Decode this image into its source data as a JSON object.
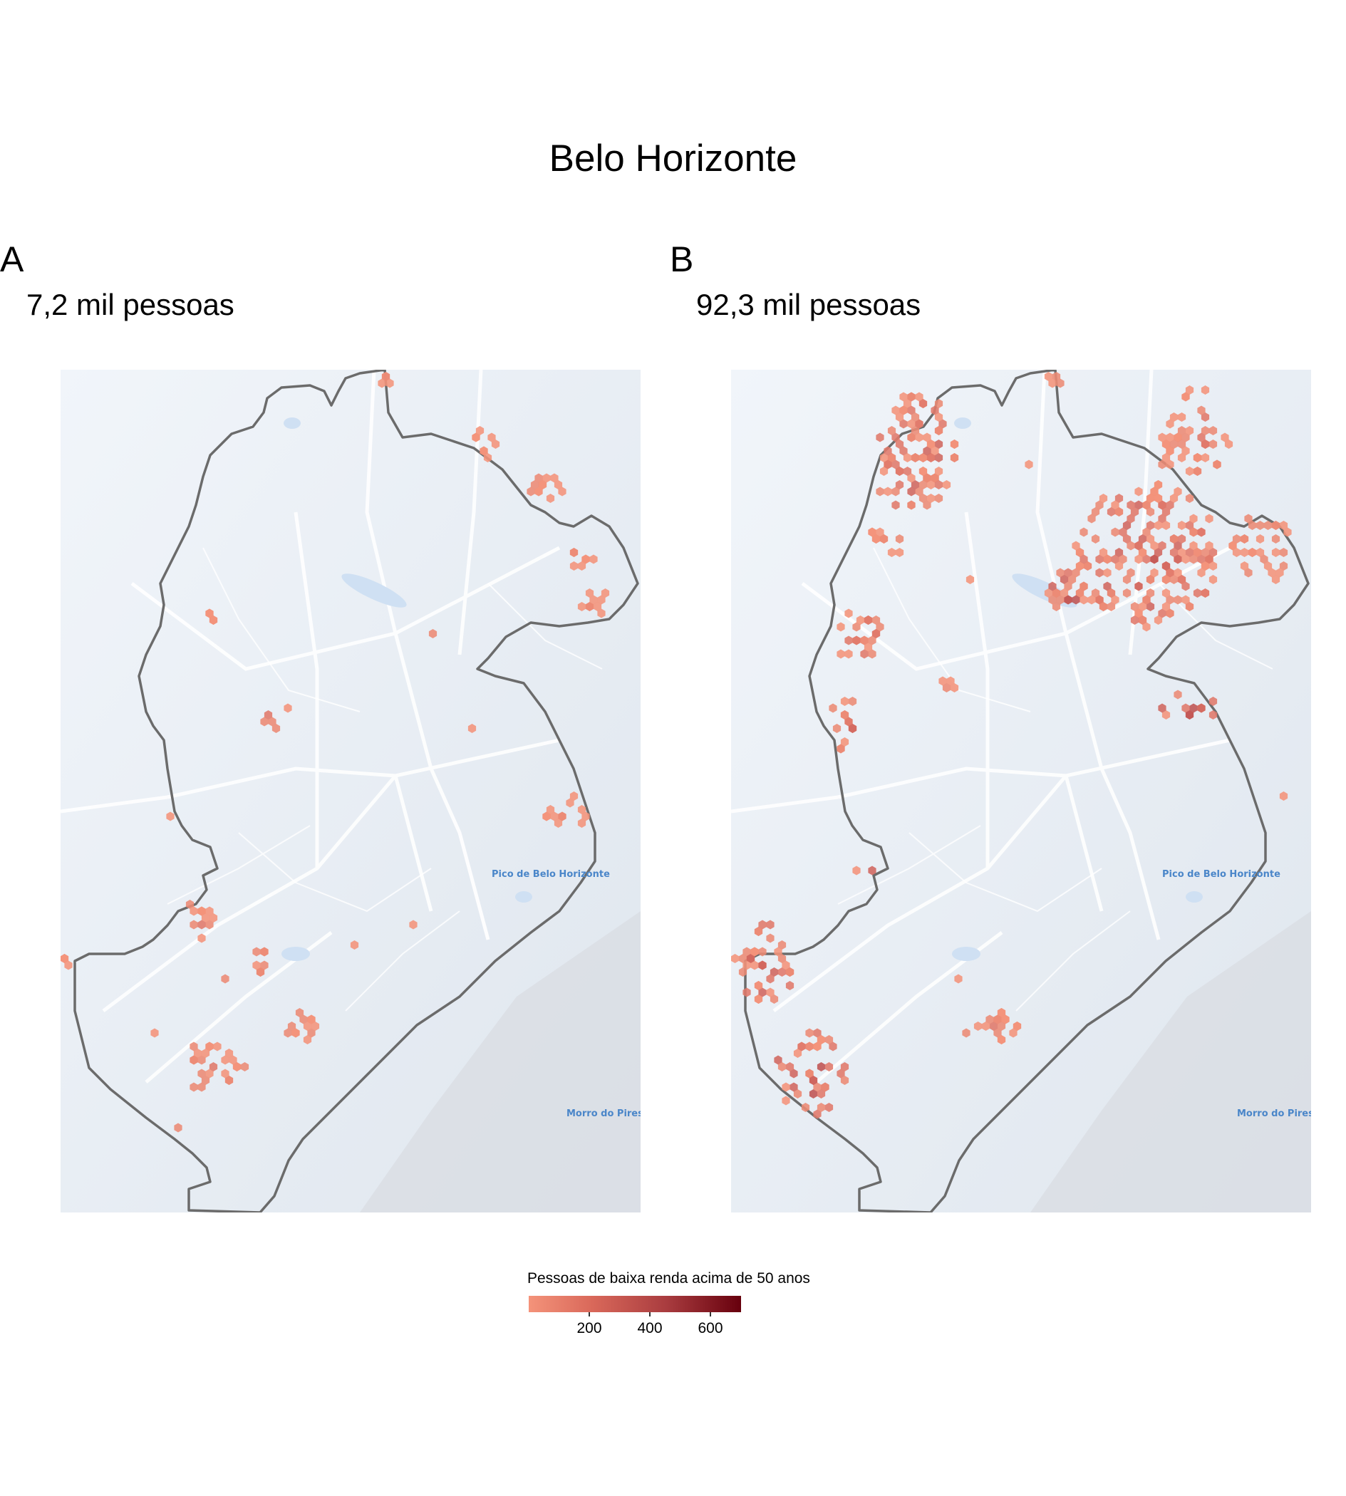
{
  "title": "Belo Horizonte",
  "panels": [
    {
      "tag": "A",
      "subtitle": "7,2 mil pessoas"
    },
    {
      "tag": "B",
      "subtitle": "92,3 mil pessoas"
    }
  ],
  "map_labels": {
    "peak": "Pico de Belo Horizonte",
    "hill": "Morro do Pires"
  },
  "legend": {
    "title": "Pessoas de baixa renda acima de 50 anos",
    "ticks": [
      "200",
      "400",
      "600"
    ],
    "tick_values": [
      200,
      400,
      600
    ],
    "range": [
      0,
      700
    ],
    "colors": {
      "low": "#f4937a",
      "mid": "#c0504d",
      "high": "#67000d"
    }
  },
  "colors": {
    "map_background": "#e9eff6",
    "boundary": "#6b6b6b",
    "roads": "#ffffff",
    "water": "#cfe0f3"
  }
}
